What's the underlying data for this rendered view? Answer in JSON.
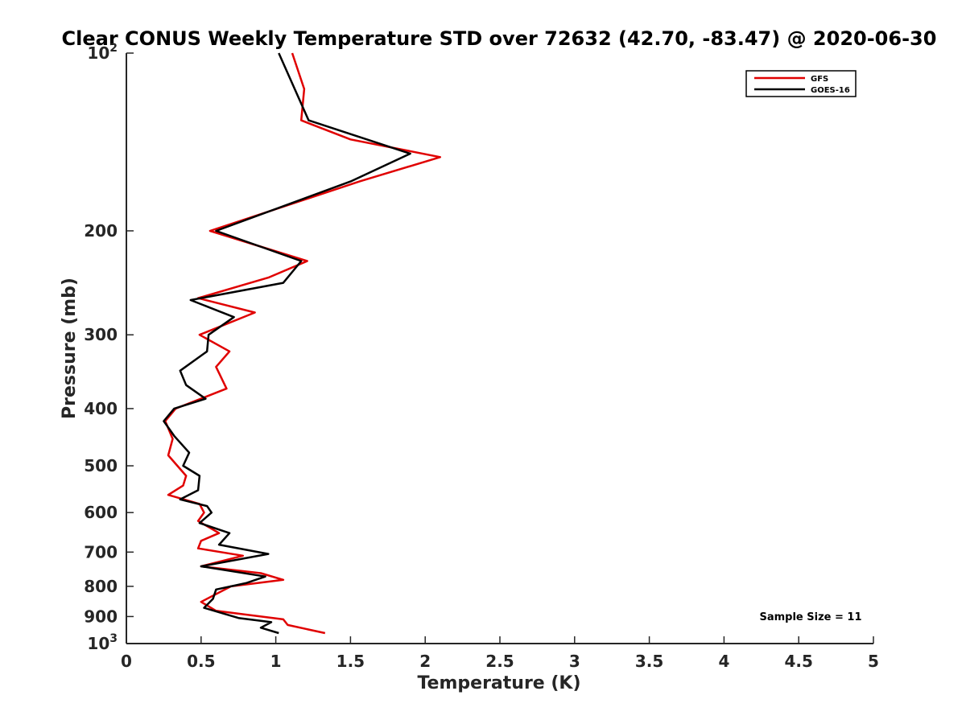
{
  "chart_data": {
    "type": "line",
    "title": "Clear CONUS Weekly Temperature STD over 72632 (42.70, -83.47) @ 2020-06-30",
    "xlabel": "Temperature (K)",
    "ylabel": "Pressure (mb)",
    "xlim": [
      0,
      5
    ],
    "ylim": [
      100,
      1000
    ],
    "y_scale": "log",
    "y_reversed": true,
    "x_ticks": [
      "0",
      "0.5",
      "1",
      "1.5",
      "2",
      "2.5",
      "3",
      "3.5",
      "4",
      "4.5",
      "5"
    ],
    "x_tick_values": [
      0,
      0.5,
      1,
      1.5,
      2,
      2.5,
      3,
      3.5,
      4,
      4.5,
      5
    ],
    "y_ticks": [
      {
        "value": 100,
        "base": "10",
        "exp": "2"
      },
      {
        "value": 200,
        "label": "200"
      },
      {
        "value": 300,
        "label": "300"
      },
      {
        "value": 400,
        "label": "400"
      },
      {
        "value": 500,
        "label": "500"
      },
      {
        "value": 600,
        "label": "600"
      },
      {
        "value": 700,
        "label": "700"
      },
      {
        "value": 800,
        "label": "800"
      },
      {
        "value": 900,
        "label": "900"
      },
      {
        "value": 1000,
        "base": "10",
        "exp": "3"
      }
    ],
    "grid": false,
    "legend_position": "top-right",
    "annotation": "Sample Size = 11",
    "series": [
      {
        "name": "GFS",
        "color": "#e00000",
        "points": [
          [
            1.11,
            100
          ],
          [
            1.19,
            115
          ],
          [
            1.17,
            130
          ],
          [
            1.5,
            140
          ],
          [
            2.1,
            150
          ],
          [
            1.56,
            165
          ],
          [
            0.56,
            200
          ],
          [
            1.21,
            225
          ],
          [
            0.95,
            240
          ],
          [
            0.48,
            260
          ],
          [
            0.86,
            275
          ],
          [
            0.49,
            300
          ],
          [
            0.69,
            320
          ],
          [
            0.6,
            340
          ],
          [
            0.67,
            370
          ],
          [
            0.33,
            400
          ],
          [
            0.26,
            420
          ],
          [
            0.31,
            450
          ],
          [
            0.28,
            480
          ],
          [
            0.4,
            520
          ],
          [
            0.38,
            540
          ],
          [
            0.28,
            560
          ],
          [
            0.49,
            580
          ],
          [
            0.52,
            600
          ],
          [
            0.48,
            620
          ],
          [
            0.62,
            650
          ],
          [
            0.5,
            670
          ],
          [
            0.48,
            690
          ],
          [
            0.78,
            710
          ],
          [
            0.5,
            740
          ],
          [
            0.9,
            760
          ],
          [
            1.05,
            780
          ],
          [
            0.7,
            800
          ],
          [
            0.5,
            850
          ],
          [
            0.6,
            880
          ],
          [
            1.05,
            910
          ],
          [
            1.08,
            930
          ],
          [
            1.33,
            960
          ]
        ]
      },
      {
        "name": "GOES-16",
        "color": "#000000",
        "points": [
          [
            1.02,
            100
          ],
          [
            1.22,
            130
          ],
          [
            1.9,
            148
          ],
          [
            1.5,
            165
          ],
          [
            0.6,
            200
          ],
          [
            1.17,
            225
          ],
          [
            1.05,
            245
          ],
          [
            0.43,
            262
          ],
          [
            0.72,
            280
          ],
          [
            0.55,
            300
          ],
          [
            0.54,
            320
          ],
          [
            0.36,
            345
          ],
          [
            0.4,
            365
          ],
          [
            0.53,
            385
          ],
          [
            0.32,
            400
          ],
          [
            0.25,
            420
          ],
          [
            0.32,
            445
          ],
          [
            0.42,
            475
          ],
          [
            0.38,
            500
          ],
          [
            0.49,
            520
          ],
          [
            0.48,
            550
          ],
          [
            0.36,
            570
          ],
          [
            0.54,
            585
          ],
          [
            0.57,
            600
          ],
          [
            0.49,
            625
          ],
          [
            0.69,
            650
          ],
          [
            0.62,
            680
          ],
          [
            0.95,
            705
          ],
          [
            0.5,
            740
          ],
          [
            0.93,
            770
          ],
          [
            0.8,
            790
          ],
          [
            0.6,
            810
          ],
          [
            0.58,
            840
          ],
          [
            0.52,
            870
          ],
          [
            0.75,
            905
          ],
          [
            0.97,
            920
          ],
          [
            0.9,
            940
          ],
          [
            1.02,
            960
          ]
        ]
      }
    ]
  }
}
